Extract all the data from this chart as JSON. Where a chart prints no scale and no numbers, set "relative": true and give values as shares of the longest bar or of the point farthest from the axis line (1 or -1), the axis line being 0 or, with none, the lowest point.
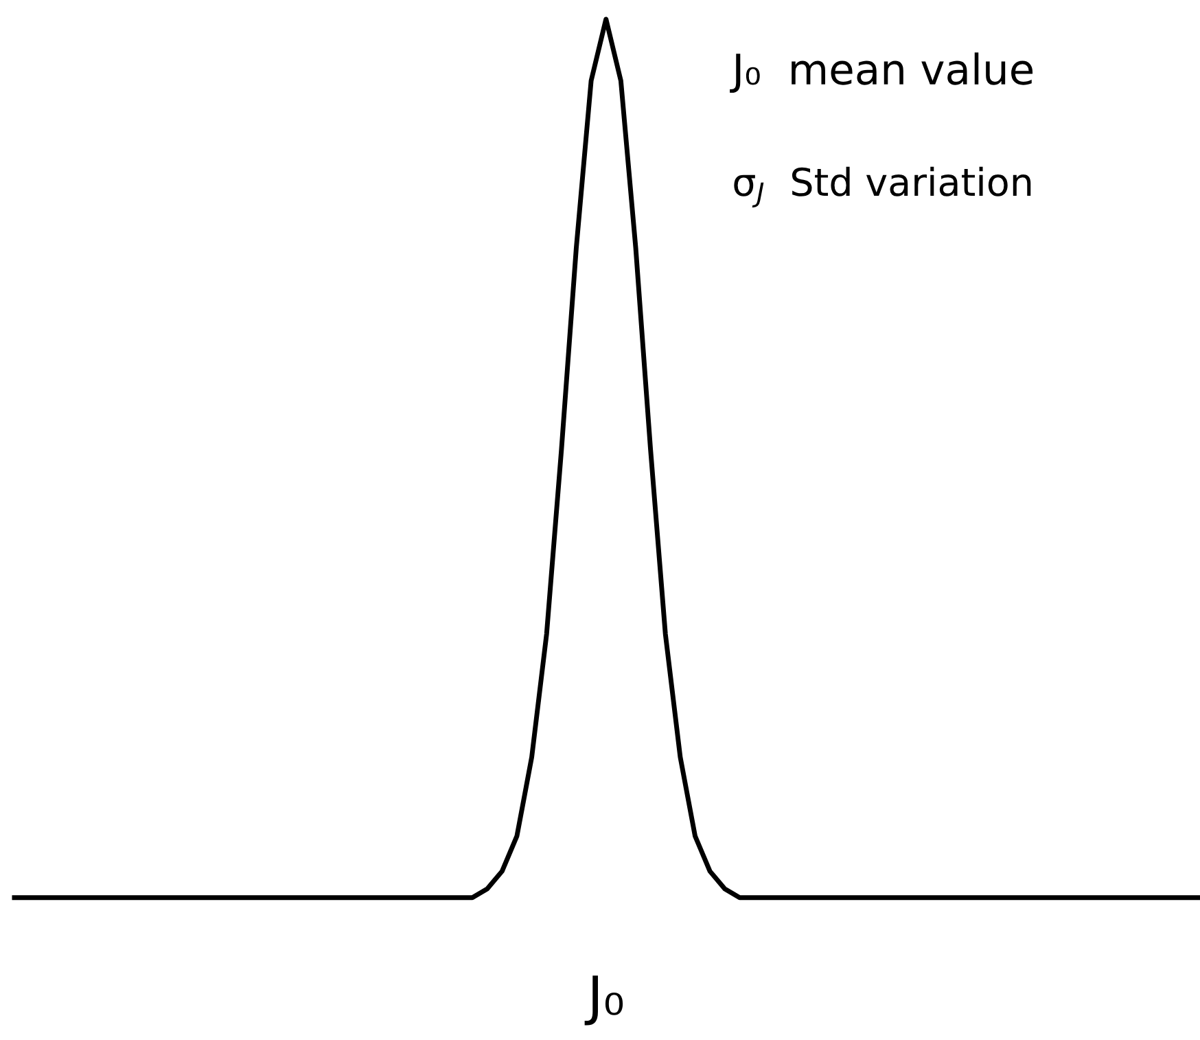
{
  "chart_data": {
    "type": "line",
    "relative": true,
    "categories": [
      null,
      null,
      null,
      null,
      null,
      null,
      null,
      null,
      null,
      null,
      null,
      null,
      null,
      null,
      null,
      null,
      null,
      null,
      null,
      null,
      null,
      null,
      null,
      null,
      null,
      null,
      null,
      null,
      null,
      null,
      null,
      null,
      null,
      null,
      null,
      null,
      null,
      null,
      null,
      null,
      null,
      null,
      null,
      null,
      null,
      null,
      null,
      null,
      null,
      null,
      null,
      null,
      null,
      null,
      null,
      null,
      null,
      null,
      null,
      null,
      null,
      null,
      null,
      null,
      null,
      null,
      null,
      null,
      null,
      null,
      null,
      null,
      null,
      null,
      null,
      null,
      null,
      null,
      null,
      null,
      null
    ],
    "series": [
      {
        "color": "#000000",
        "values": [
          0,
          0,
          0,
          0,
          0,
          0,
          0,
          0,
          0,
          0,
          0,
          0,
          0,
          0,
          0,
          0,
          0,
          0,
          0,
          0,
          0,
          0,
          0,
          0,
          0,
          0,
          0,
          0,
          0,
          0,
          0,
          0,
          0.01,
          0.03,
          0.07,
          0.16,
          0.3,
          0.51,
          0.74,
          0.93,
          1,
          0.93,
          0.74,
          0.51,
          0.3,
          0.16,
          0.07,
          0.03,
          0.01,
          0,
          0,
          0,
          0,
          0,
          0,
          0,
          0,
          0,
          0,
          0,
          0,
          0,
          0,
          0,
          0,
          0,
          0,
          0,
          0,
          0,
          0,
          0,
          0,
          0,
          0,
          0,
          0,
          0,
          0,
          0,
          0
        ]
      }
    ],
    "annotations": [
      "J₀  mean value",
      "σ$_{J}$  Std variation",
      "J₀"
    ],
    "marker": "none",
    "line_style": "solid"
  }
}
